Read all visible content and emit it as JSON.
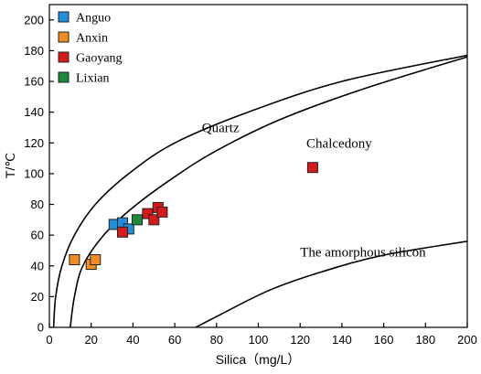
{
  "chart_data": {
    "type": "scatter",
    "title": "",
    "xlabel": "Silica（mg/L）",
    "ylabel": "T/℃",
    "xlim": [
      0,
      200
    ],
    "ylim": [
      0,
      210
    ],
    "x_ticks": [
      0,
      20,
      40,
      60,
      80,
      100,
      120,
      140,
      160,
      180,
      200
    ],
    "y_ticks": [
      0,
      20,
      40,
      60,
      80,
      100,
      120,
      140,
      160,
      180,
      200
    ],
    "grid": false,
    "legend_position": "top-left",
    "series": [
      {
        "name": "Anguo",
        "color": "#1f8fdc",
        "points": [
          [
            31,
            67
          ],
          [
            35,
            68
          ],
          [
            38,
            64
          ]
        ]
      },
      {
        "name": "Anxin",
        "color": "#f28c1e",
        "points": [
          [
            12,
            44
          ],
          [
            20,
            41
          ],
          [
            22,
            44
          ]
        ]
      },
      {
        "name": "Gaoyang",
        "color": "#d7191c",
        "points": [
          [
            35,
            62
          ],
          [
            47,
            74
          ],
          [
            50,
            70
          ],
          [
            52,
            78
          ],
          [
            54,
            75
          ],
          [
            126,
            104
          ]
        ]
      },
      {
        "name": "Lixian",
        "color": "#1a8a3c",
        "points": [
          [
            42,
            70
          ]
        ]
      }
    ],
    "curves": [
      {
        "name": "Quartz",
        "label": "Quartz",
        "points": [
          [
            2,
            0
          ],
          [
            3,
            20
          ],
          [
            6,
            40
          ],
          [
            12,
            60
          ],
          [
            22,
            80
          ],
          [
            38,
            100
          ],
          [
            60,
            120
          ],
          [
            95,
            140
          ],
          [
            140,
            160
          ],
          [
            200,
            177
          ]
        ]
      },
      {
        "name": "Chalcedony",
        "label": "Chalcedony",
        "points": [
          [
            10,
            0
          ],
          [
            12,
            20
          ],
          [
            16,
            40
          ],
          [
            26,
            60
          ],
          [
            40,
            78
          ],
          [
            60,
            98
          ],
          [
            80,
            115
          ],
          [
            110,
            135
          ],
          [
            150,
            155
          ],
          [
            200,
            176
          ]
        ]
      },
      {
        "name": "The amorphous silicon",
        "label": "The amorphous silicon",
        "points": [
          [
            70,
            0
          ],
          [
            80,
            7
          ],
          [
            105,
            24
          ],
          [
            130,
            36
          ],
          [
            160,
            47
          ],
          [
            200,
            56
          ]
        ]
      }
    ],
    "curve_label_positions": {
      "Quartz": [
        73,
        127
      ],
      "Chalcedony": [
        123,
        117
      ],
      "The amorphous silicon": [
        120,
        46
      ]
    }
  }
}
